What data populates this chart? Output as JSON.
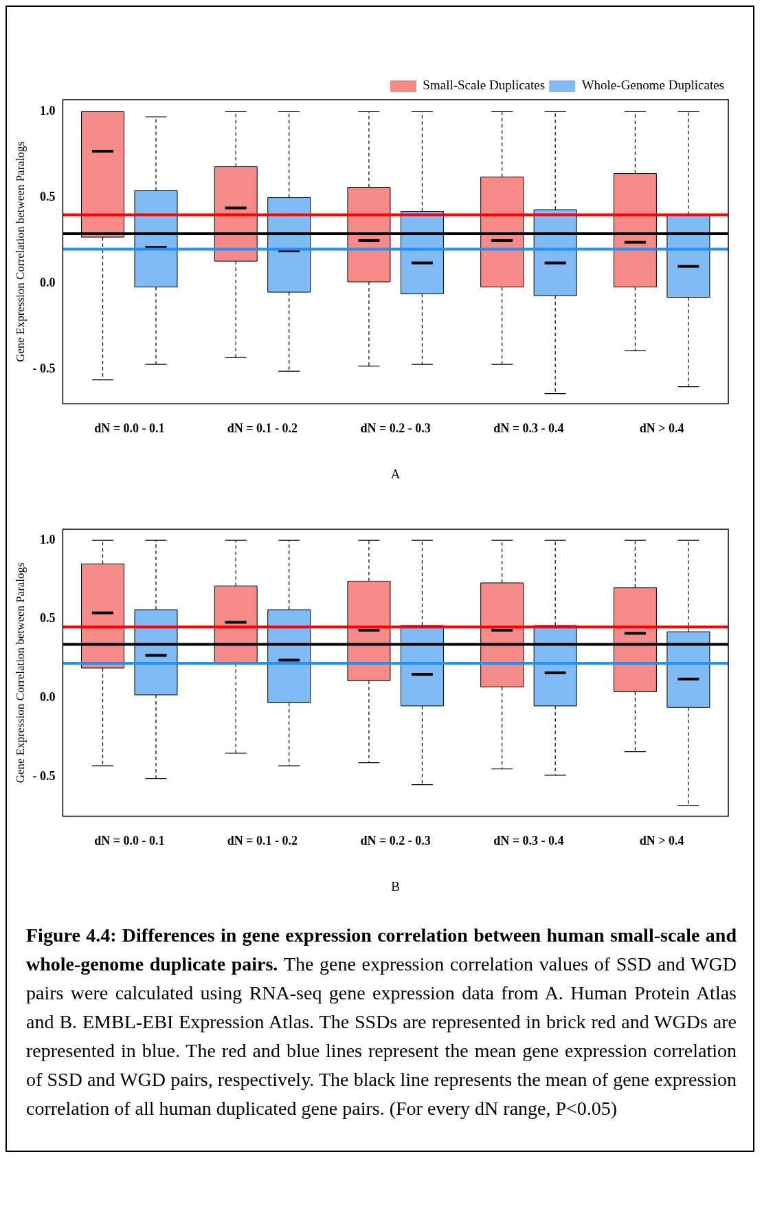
{
  "chart_data": [
    {
      "type": "box",
      "categories": [
        "dN = 0.0 - 0.1",
        "dN = 0.1 - 0.2",
        "dN = 0.2 - 0.3",
        "dN = 0.3 - 0.4",
        "dN > 0.4"
      ],
      "xlabel": "A",
      "ylabel": "Gene Expression Correlation between Paralogs",
      "ylim": [
        -0.7,
        1.07
      ],
      "yticks": [
        {
          "value": -0.5,
          "label": "- 0.5"
        },
        {
          "value": 0,
          "label": "0.0"
        },
        {
          "value": 0.5,
          "label": "0.5"
        },
        {
          "value": 1,
          "label": "1.0"
        }
      ],
      "legend": "top right",
      "grid": false,
      "series": [
        {
          "name": "Small-Scale Duplicates",
          "color": "#f68a88",
          "boxes": [
            {
              "low": -0.56,
              "q1": 0.27,
              "median": 0.77,
              "q3": 1.0,
              "high": 1.0
            },
            {
              "low": -0.43,
              "q1": 0.13,
              "median": 0.44,
              "q3": 0.68,
              "high": 1.0
            },
            {
              "low": -0.48,
              "q1": 0.01,
              "median": 0.25,
              "q3": 0.56,
              "high": 1.0
            },
            {
              "low": -0.47,
              "q1": -0.02,
              "median": 0.25,
              "q3": 0.62,
              "high": 1.0
            },
            {
              "low": -0.39,
              "q1": -0.02,
              "median": 0.24,
              "q3": 0.64,
              "high": 1.0
            }
          ]
        },
        {
          "name": "Whole-Genome Duplicates",
          "color": "#80bbf5",
          "boxes": [
            {
              "low": -0.47,
              "q1": -0.02,
              "median": 0.21,
              "q3": 0.54,
              "high": 0.97
            },
            {
              "low": -0.51,
              "q1": -0.05,
              "median": 0.19,
              "q3": 0.5,
              "high": 1.0
            },
            {
              "low": -0.47,
              "q1": -0.06,
              "median": 0.12,
              "q3": 0.42,
              "high": 1.0
            },
            {
              "low": -0.64,
              "q1": -0.07,
              "median": 0.12,
              "q3": 0.43,
              "high": 1.0
            },
            {
              "low": -0.6,
              "q1": -0.08,
              "median": 0.1,
              "q3": 0.4,
              "high": 1.0
            }
          ]
        }
      ],
      "ref_lines": [
        {
          "axis": "y",
          "value": 0.4,
          "color": "#ff0000"
        },
        {
          "axis": "y",
          "value": 0.29,
          "color": "#000000"
        },
        {
          "axis": "y",
          "value": 0.2,
          "color": "#1e90ff"
        }
      ]
    },
    {
      "type": "box",
      "categories": [
        "dN = 0.0 - 0.1",
        "dN = 0.1 - 0.2",
        "dN = 0.2 - 0.3",
        "dN = 0.3 - 0.4",
        "dN > 0.4"
      ],
      "xlabel": "B",
      "ylabel": "Gene Expression Correlation between Paralogs",
      "ylim": [
        -0.75,
        1.07
      ],
      "yticks": [
        {
          "value": -0.5,
          "label": "- 0.5"
        },
        {
          "value": 0,
          "label": "0.0"
        },
        {
          "value": 0.5,
          "label": "0.5"
        },
        {
          "value": 1,
          "label": "1.0"
        }
      ],
      "grid": false,
      "series": [
        {
          "color": "#f68a88",
          "boxes": [
            {
              "low": -0.43,
              "q1": 0.19,
              "median": 0.54,
              "q3": 0.85,
              "high": 1.0
            },
            {
              "low": -0.35,
              "q1": 0.22,
              "median": 0.48,
              "q3": 0.71,
              "high": 1.0
            },
            {
              "low": -0.41,
              "q1": 0.11,
              "median": 0.43,
              "q3": 0.74,
              "high": 1.0
            },
            {
              "low": -0.45,
              "q1": 0.07,
              "median": 0.43,
              "q3": 0.73,
              "high": 1.0
            },
            {
              "low": -0.34,
              "q1": 0.04,
              "median": 0.41,
              "q3": 0.7,
              "high": 1.0
            }
          ]
        },
        {
          "color": "#80bbf5",
          "boxes": [
            {
              "low": -0.51,
              "q1": 0.02,
              "median": 0.27,
              "q3": 0.56,
              "high": 1.0
            },
            {
              "low": -0.43,
              "q1": -0.03,
              "median": 0.24,
              "q3": 0.56,
              "high": 1.0
            },
            {
              "low": -0.55,
              "q1": -0.05,
              "median": 0.15,
              "q3": 0.46,
              "high": 1.0
            },
            {
              "low": -0.49,
              "q1": -0.05,
              "median": 0.16,
              "q3": 0.46,
              "high": 1.0
            },
            {
              "low": -0.68,
              "q1": -0.06,
              "median": 0.12,
              "q3": 0.42,
              "high": 1.0
            }
          ]
        }
      ],
      "ref_lines": [
        {
          "axis": "y",
          "value": 0.45,
          "color": "#ff0000"
        },
        {
          "axis": "y",
          "value": 0.34,
          "color": "#000000"
        },
        {
          "axis": "y",
          "value": 0.22,
          "color": "#1e90ff"
        }
      ],
      "annotations": [
        "Figure 4.4: Differences in gene expression correlation between human small-scale and whole-genome duplicate pairs.",
        "The gene expression correlation values of SSD and WGD pairs were calculated using RNA-seq gene expression data from A. Human Protein Atlas and B. EMBL-EBI Expression Atlas.  The SSDs are represented in brick red and WGDs are represented in blue. The red and blue lines represent the mean gene expression correlation of SSD and WGD pairs, respectively. The black line represents the mean of gene expression correlation of all human duplicated gene pairs. (For every dN range, P<0.05)"
      ]
    }
  ]
}
